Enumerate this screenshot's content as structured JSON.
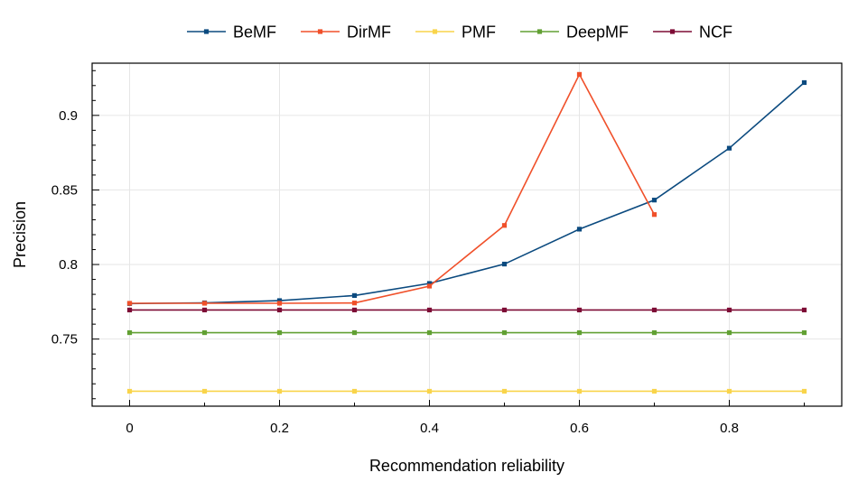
{
  "chart_data": {
    "type": "line",
    "xlabel": "Recommendation reliability",
    "ylabel": "Precision",
    "xlim": [
      -0.05,
      0.95
    ],
    "ylim": [
      0.705,
      0.935
    ],
    "x_ticks": [
      0,
      0.2,
      0.4,
      0.6,
      0.8
    ],
    "x_tick_labels": [
      "0",
      "0.2",
      "0.4",
      "0.6",
      "0.8"
    ],
    "y_ticks": [
      0.75,
      0.8,
      0.85,
      0.9
    ],
    "y_tick_labels": [
      "0.75",
      "0.8",
      "0.85",
      "0.9"
    ],
    "grid": true,
    "legend_position": "top",
    "series": [
      {
        "name": "BeMF",
        "color": "#0b4a7f",
        "x": [
          0,
          0.1,
          0.2,
          0.3,
          0.4,
          0.5,
          0.6,
          0.7,
          0.8,
          0.9
        ],
        "y": [
          0.7738,
          0.7743,
          0.7758,
          0.7792,
          0.7873,
          0.8003,
          0.8237,
          0.8432,
          0.878,
          0.922
        ]
      },
      {
        "name": "DirMF",
        "color": "#f0502a",
        "x": [
          0,
          0.1,
          0.2,
          0.3,
          0.4,
          0.5,
          0.6,
          0.7
        ],
        "y": [
          0.774,
          0.774,
          0.774,
          0.7742,
          0.7855,
          0.8262,
          0.9275,
          0.8335
        ]
      },
      {
        "name": "PMF",
        "color": "#f9d44a",
        "x": [
          0,
          0.1,
          0.2,
          0.3,
          0.4,
          0.5,
          0.6,
          0.7,
          0.8,
          0.9
        ],
        "y": [
          0.715,
          0.715,
          0.715,
          0.715,
          0.715,
          0.715,
          0.715,
          0.715,
          0.715,
          0.715
        ]
      },
      {
        "name": "DeepMF",
        "color": "#62a033",
        "x": [
          0,
          0.1,
          0.2,
          0.3,
          0.4,
          0.5,
          0.6,
          0.7,
          0.8,
          0.9
        ],
        "y": [
          0.7543,
          0.7543,
          0.7543,
          0.7543,
          0.7543,
          0.7543,
          0.7543,
          0.7543,
          0.7543,
          0.7543
        ]
      },
      {
        "name": "NCF",
        "color": "#7d0b35",
        "x": [
          0,
          0.1,
          0.2,
          0.3,
          0.4,
          0.5,
          0.6,
          0.7,
          0.8,
          0.9
        ],
        "y": [
          0.7695,
          0.7695,
          0.7695,
          0.7695,
          0.7695,
          0.7695,
          0.7695,
          0.7695,
          0.7695,
          0.7695
        ]
      }
    ]
  }
}
